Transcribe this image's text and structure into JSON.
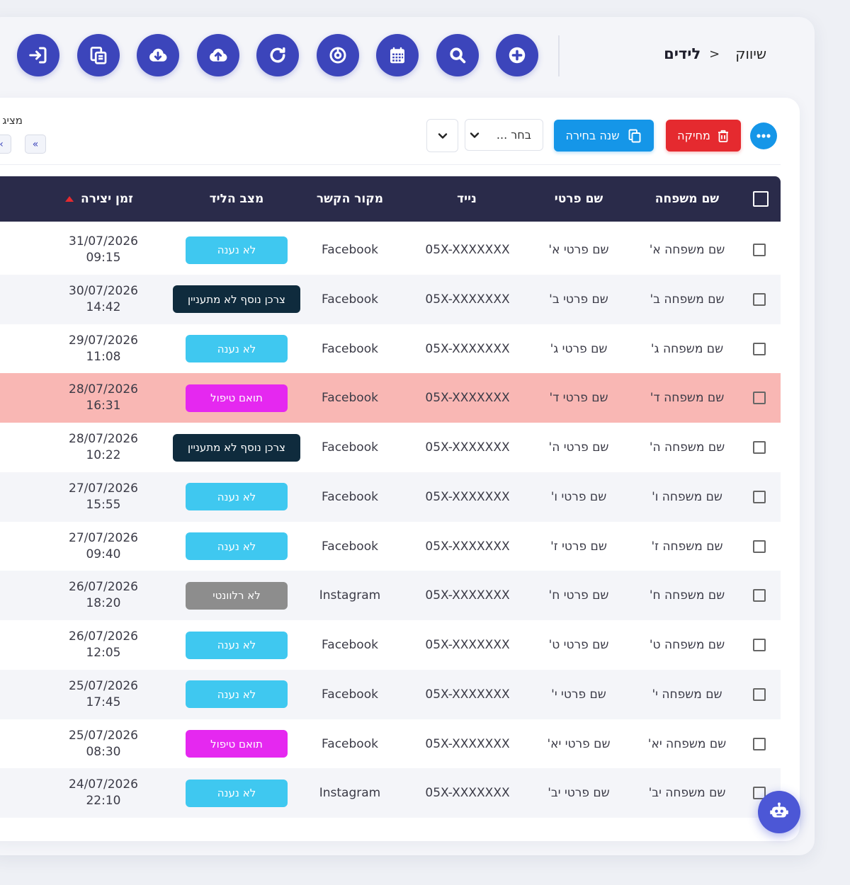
{
  "breadcrumb": {
    "root": "שיווק",
    "separator": "<",
    "current": "לידים"
  },
  "toolbar": {
    "icons": [
      "login-icon",
      "copy-icon",
      "cloud-download-icon",
      "cloud-upload-icon",
      "refresh-icon",
      "target-icon",
      "calendar-icon",
      "search-icon",
      "plus-icon"
    ]
  },
  "actions": {
    "delete_label": "מחיקה",
    "year_label": "שנה בחירה",
    "select_placeholder": "בחר ...",
    "display_label": "מציג",
    "pager_first": "«",
    "pager_prev": "‹"
  },
  "table": {
    "headers": {
      "last_name": "שם משפחה",
      "first_name": "שם פרטי",
      "mobile": "נייד",
      "source": "מקור הקשר",
      "status": "מצב הליד",
      "created": "זמן יצירה"
    },
    "rows": [
      {
        "last_name": "שם משפחה א'",
        "first_name": "שם פרטי א'",
        "mobile": "05X-XXXXXXX",
        "source": "Facebook",
        "status": "לא נענה",
        "status_color": "#3fc8f0",
        "status_text_color": "#ffffff",
        "date": "31/07/2026",
        "time": "09:15"
      },
      {
        "last_name": "שם משפחה ב'",
        "first_name": "שם פרטי ב'",
        "mobile": "05X-XXXXXXX",
        "source": "Facebook",
        "status": "צרכן נוסף לא מתעניין",
        "status_color": "#0f2b3d",
        "status_text_color": "#ffffff",
        "date": "30/07/2026",
        "time": "14:42"
      },
      {
        "last_name": "שם משפחה ג'",
        "first_name": "שם פרטי ג'",
        "mobile": "05X-XXXXXXX",
        "source": "Facebook",
        "status": "לא נענה",
        "status_color": "#3fc8f0",
        "status_text_color": "#ffffff",
        "date": "29/07/2026",
        "time": "11:08"
      },
      {
        "last_name": "שם משפחה ד'",
        "first_name": "שם פרטי ד'",
        "mobile": "05X-XXXXXXX",
        "source": "Facebook",
        "status": "תואם טיפול",
        "status_color": "#e528f0",
        "status_text_color": "#ffffff",
        "date": "28/07/2026",
        "time": "16:31",
        "highlight": true
      },
      {
        "last_name": "שם משפחה ה'",
        "first_name": "שם פרטי ה'",
        "mobile": "05X-XXXXXXX",
        "source": "Facebook",
        "status": "צרכן נוסף לא מתעניין",
        "status_color": "#0f2b3d",
        "status_text_color": "#ffffff",
        "date": "28/07/2026",
        "time": "10:22"
      },
      {
        "last_name": "שם משפחה ו'",
        "first_name": "שם פרטי ו'",
        "mobile": "05X-XXXXXXX",
        "source": "Facebook",
        "status": "לא נענה",
        "status_color": "#3fc8f0",
        "status_text_color": "#ffffff",
        "date": "27/07/2026",
        "time": "15:55"
      },
      {
        "last_name": "שם משפחה ז'",
        "first_name": "שם פרטי ז'",
        "mobile": "05X-XXXXXXX",
        "source": "Facebook",
        "status": "לא נענה",
        "status_color": "#3fc8f0",
        "status_text_color": "#ffffff",
        "date": "27/07/2026",
        "time": "09:40"
      },
      {
        "last_name": "שם משפחה ח'",
        "first_name": "שם פרטי ח'",
        "mobile": "05X-XXXXXXX",
        "source": "Instagram",
        "status": "לא רלוונטי",
        "status_color": "#8d8d8d",
        "status_text_color": "#ffffff",
        "date": "26/07/2026",
        "time": "18:20"
      },
      {
        "last_name": "שם משפחה ט'",
        "first_name": "שם פרטי ט'",
        "mobile": "05X-XXXXXXX",
        "source": "Facebook",
        "status": "לא נענה",
        "status_color": "#3fc8f0",
        "status_text_color": "#ffffff",
        "date": "26/07/2026",
        "time": "12:05"
      },
      {
        "last_name": "שם משפחה י'",
        "first_name": "שם פרטי י'",
        "mobile": "05X-XXXXXXX",
        "source": "Facebook",
        "status": "לא נענה",
        "status_color": "#3fc8f0",
        "status_text_color": "#ffffff",
        "date": "25/07/2026",
        "time": "17:45"
      },
      {
        "last_name": "שם משפחה יא'",
        "first_name": "שם פרטי יא'",
        "mobile": "05X-XXXXXXX",
        "source": "Facebook",
        "status": "תואם טיפול",
        "status_color": "#e528f0",
        "status_text_color": "#ffffff",
        "date": "25/07/2026",
        "time": "08:30"
      },
      {
        "last_name": "שם משפחה יב'",
        "first_name": "שם פרטי יב'",
        "mobile": "05X-XXXXXXX",
        "source": "Instagram",
        "status": "לא נענה",
        "status_color": "#3fc8f0",
        "status_text_color": "#ffffff",
        "date": "24/07/2026",
        "time": "22:10"
      }
    ]
  },
  "colors": {
    "primary": "#3c45bb",
    "header_bg": "#2a2b4a",
    "delete": "#e52a2f",
    "info": "#1596e8",
    "highlight_row": "#f9b7b4"
  }
}
